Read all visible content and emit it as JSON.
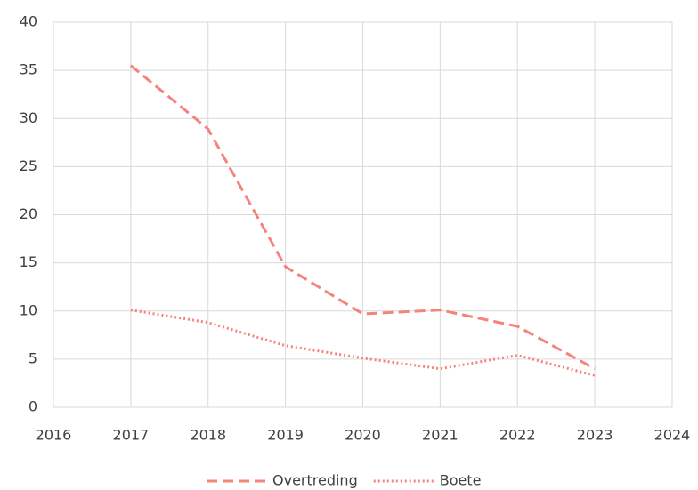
{
  "chart_data": {
    "type": "line",
    "x": [
      2017,
      2018,
      2019,
      2020,
      2021,
      2022,
      2023
    ],
    "series": [
      {
        "name": "Overtreding",
        "color": "#f4837d",
        "line_style": "dashed",
        "values": [
          35.5,
          28.9,
          14.6,
          9.7,
          10.1,
          8.4,
          4.0
        ]
      },
      {
        "name": "Boete",
        "color": "#f4837d",
        "line_style": "dotted",
        "values": [
          10.1,
          8.8,
          6.4,
          5.1,
          4.0,
          5.4,
          3.3
        ]
      }
    ],
    "xlim": [
      2016,
      2024
    ],
    "xticks": [
      2016,
      2017,
      2018,
      2019,
      2020,
      2021,
      2022,
      2023,
      2024
    ],
    "ylim": [
      0,
      40
    ],
    "yticks": [
      0,
      5,
      10,
      15,
      20,
      25,
      30,
      35,
      40
    ],
    "grid": true,
    "legend": "bottom"
  }
}
